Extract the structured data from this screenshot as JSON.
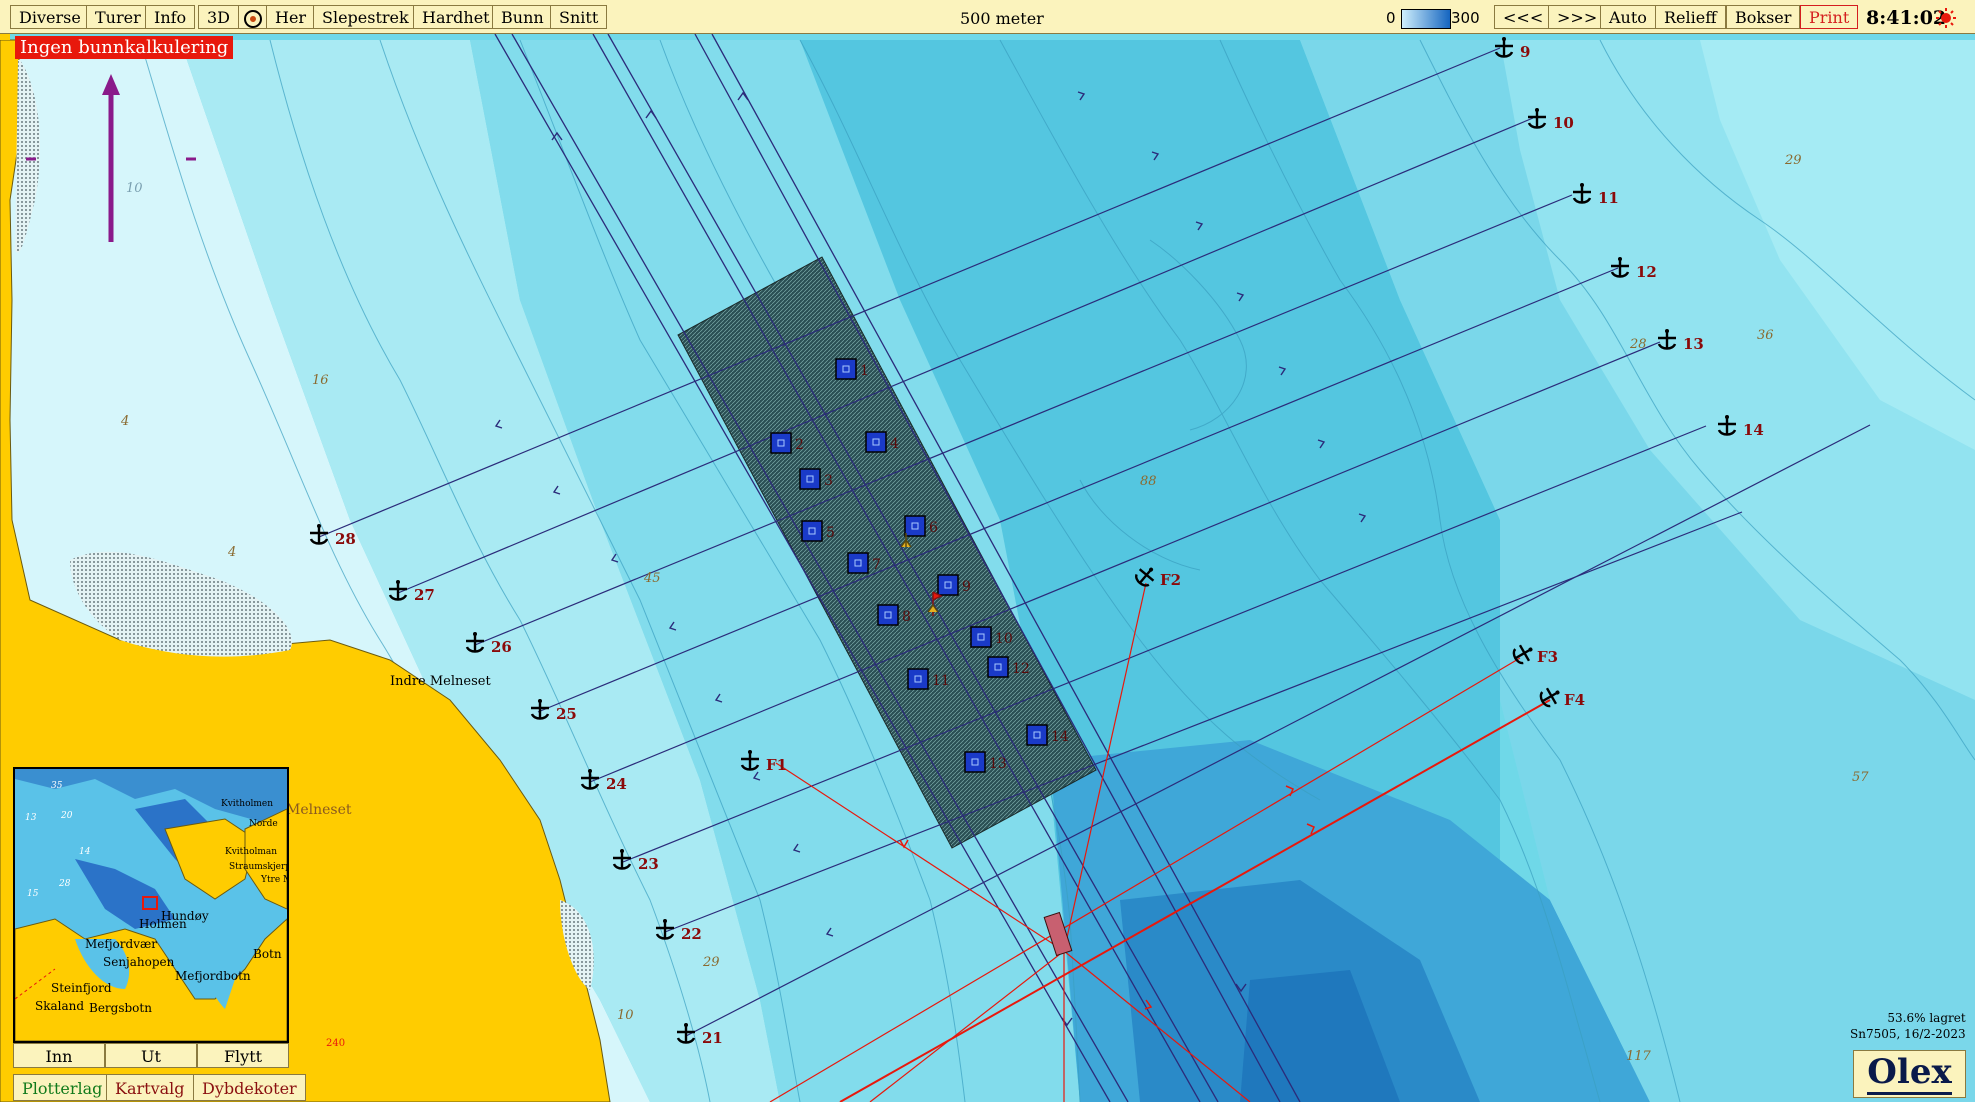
{
  "toolbar": {
    "buttons": [
      "Diverse",
      "Turer",
      "Info",
      "3D",
      "Her",
      "Slepestrek",
      "Hardhet",
      "Bunn",
      "Snitt"
    ],
    "scale_label": "500 meter",
    "depth_min": "0",
    "depth_max": "300",
    "right_buttons": [
      "<<<",
      ">>>",
      "Auto",
      "Relieff",
      "Bokser",
      "Print"
    ],
    "clock": "8:41:02"
  },
  "status_tag": "Ingen bunnkalkulering",
  "place_labels": {
    "indre_melneset": "Indre Melneset",
    "melneset": "Melneset"
  },
  "depth_labels": [
    "16",
    "4",
    "4",
    "45",
    "29",
    "10",
    "88",
    "28",
    "36",
    "29",
    "57",
    "117",
    "240",
    "10"
  ],
  "boxes": [
    "1",
    "2",
    "3",
    "4",
    "5",
    "6",
    "7",
    "8",
    "9",
    "10",
    "11",
    "12",
    "13",
    "14"
  ],
  "anchors_right": [
    "9",
    "10",
    "11",
    "12",
    "13",
    "14"
  ],
  "anchors_left": [
    "21",
    "22",
    "23",
    "24",
    "25",
    "26",
    "27",
    "28"
  ],
  "anchors_f": [
    "F1",
    "F2",
    "F3",
    "F4"
  ],
  "minimap": {
    "labels": [
      "Kvitholmen",
      "Norde",
      "Kvitholman",
      "Straumskjerpet",
      "Ytre M",
      "Holmen",
      "Hundøy",
      "Mefjordvær",
      "Senjahopen",
      "Mefjordbotn",
      "Botn",
      "Steinfjord",
      "Skaland",
      "Bergsbotn"
    ],
    "depths": [
      "35",
      "13",
      "20",
      "14",
      "28",
      "15"
    ],
    "btn_in": "Inn",
    "btn_out": "Ut",
    "btn_move": "Flytt"
  },
  "tabs": [
    "Plotterlag",
    "Kartvalg",
    "Dybdekoter"
  ],
  "status": {
    "saved": "53.6% lagret",
    "serial": "Sn7505, 16/2-2023"
  },
  "logo": "Olex",
  "colors": {
    "land": "#ffcc00",
    "shallow": "#d6f6fb",
    "mid": "#5fd1e4",
    "deep": "#2a96cc",
    "box_fill": "#1a3ac8",
    "red_line": "#e8180c",
    "track_line": "#2b2b7a"
  }
}
